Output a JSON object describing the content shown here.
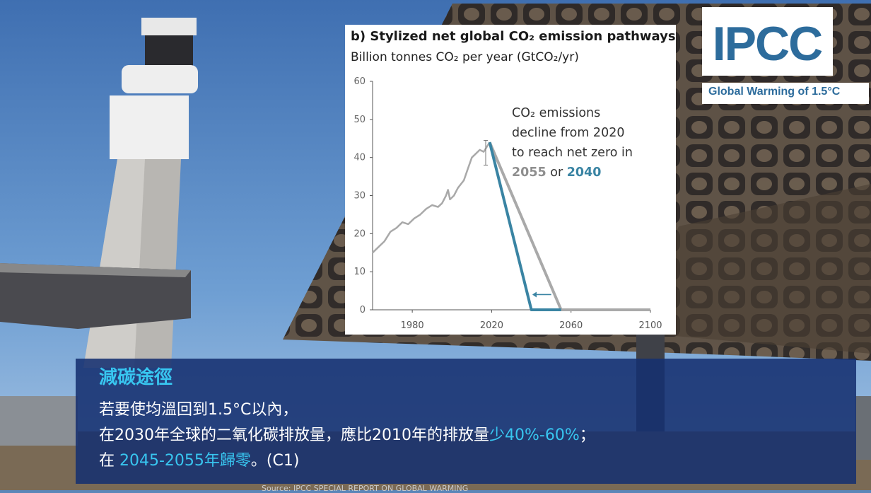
{
  "chart_data": {
    "type": "line",
    "title": "b) Stylized net global CO₂ emission pathways",
    "subtitle": "Billion tonnes CO₂ per year (GtCO₂/yr)",
    "xlim": [
      1960,
      2100
    ],
    "ylim": [
      0,
      60
    ],
    "x_ticks": [
      "1980",
      "2020",
      "2060",
      "2100"
    ],
    "y_ticks": [
      "0",
      "10",
      "20",
      "30",
      "40",
      "50",
      "60"
    ],
    "grid": false,
    "legend": "none",
    "series": [
      {
        "color": "#a9a9a9",
        "points": [
          [
            1960,
            15
          ],
          [
            1963,
            16.5
          ],
          [
            1966,
            18
          ],
          [
            1969,
            20.5
          ],
          [
            1972,
            21.5
          ],
          [
            1975,
            23
          ],
          [
            1978,
            22.5
          ],
          [
            1981,
            24
          ],
          [
            1984,
            25
          ],
          [
            1987,
            26.5
          ],
          [
            1990,
            27.5
          ],
          [
            1993,
            27
          ],
          [
            1995,
            28
          ],
          [
            1997,
            30
          ],
          [
            1998,
            31.5
          ],
          [
            1999,
            29
          ],
          [
            2001,
            30
          ],
          [
            2003,
            32
          ],
          [
            2006,
            34
          ],
          [
            2008,
            37
          ],
          [
            2010,
            40
          ],
          [
            2012,
            41
          ],
          [
            2014,
            42
          ],
          [
            2016,
            41.5
          ],
          [
            2019,
            44
          ]
        ]
      },
      {
        "color": "#a9a9a9",
        "points": [
          [
            2019,
            44
          ],
          [
            2055,
            0
          ],
          [
            2100,
            0
          ]
        ]
      },
      {
        "color": "#3a84a3",
        "points": [
          [
            2019,
            44
          ],
          [
            2040,
            0
          ],
          [
            2055,
            0
          ]
        ]
      }
    ],
    "error_bar": {
      "x": 2017,
      "low": 38,
      "high": 44.5
    },
    "annotation": {
      "lines": [
        "CO₂ emissions",
        "decline from 2020",
        "to reach net zero in"
      ],
      "last_line": {
        "a": "2055",
        "mid": " or ",
        "b": "2040"
      }
    }
  },
  "logo": {
    "text": "IPCC",
    "subtitle": "Global Warming of 1.5°C"
  },
  "caption": {
    "heading": "減碳途徑",
    "line1": "若要使均溫回到1.5°C以內，",
    "line2_prefix": "在2030年全球的二氧化碳排放量，應比2010年的排放量",
    "line2_highlight": "少40%-60%",
    "line2_suffix": "；",
    "line3_prefix": "在 ",
    "line3_highlight": "2045-2055年歸零",
    "line3_suffix": "。(C1)"
  },
  "source": "Source: IPCC SPECIAL REPORT ON GLOBAL WARMING",
  "colors": {
    "sky": "#5b86b8",
    "caption_bg": "#163070",
    "caption_highlight": "#38c6f0",
    "pathway_blue": "#3a84a3",
    "pathway_gray": "#a9a9a9",
    "logo_blue": "#2d6c9c"
  }
}
